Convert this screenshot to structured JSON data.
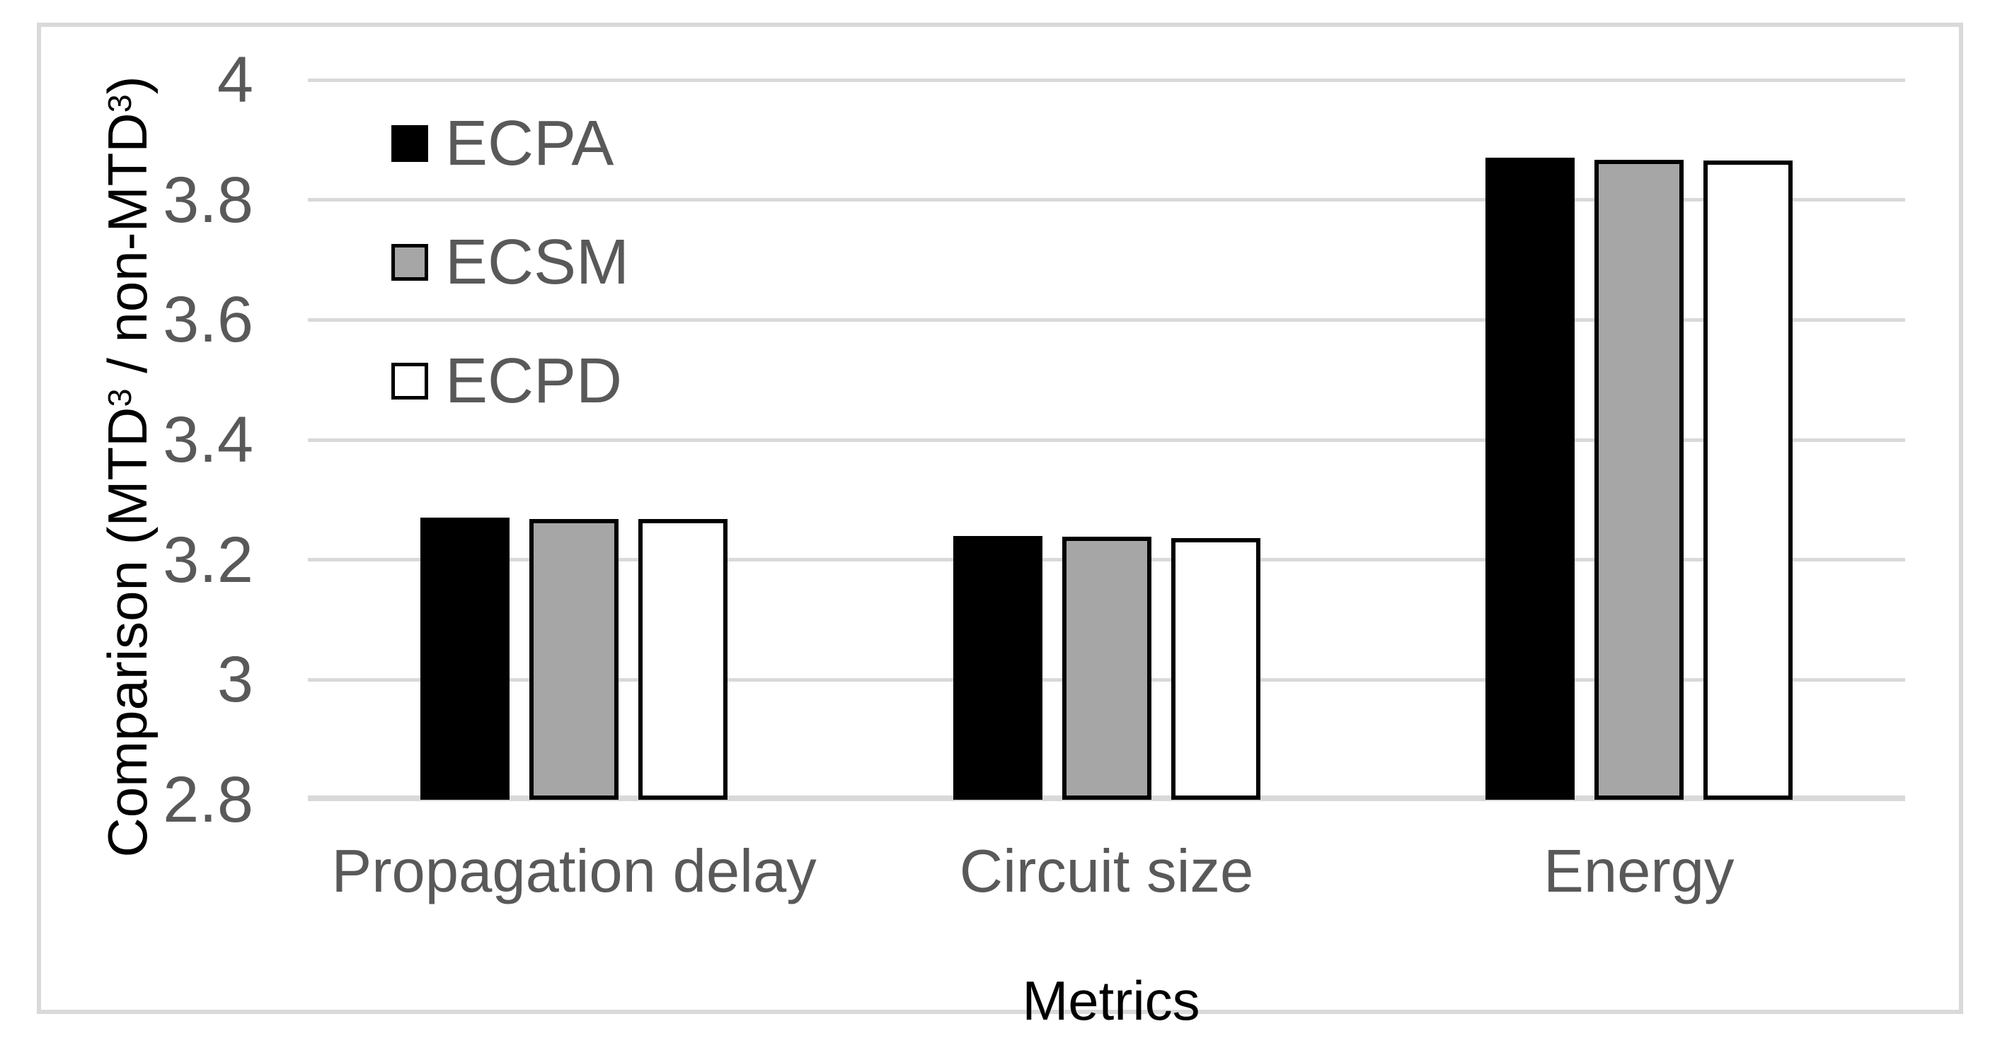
{
  "chart_data": {
    "type": "bar",
    "categories": [
      "Propagation delay",
      "Circuit size",
      "Energy"
    ],
    "series": [
      {
        "name": "ECPA",
        "fill": "#000000",
        "border": "#000000",
        "values": [
          3.27,
          3.24,
          3.87
        ]
      },
      {
        "name": "ECSM",
        "fill": "#a6a6a6",
        "border": "#000000",
        "values": [
          3.268,
          3.239,
          3.867
        ]
      },
      {
        "name": "ECPD",
        "fill": "#ffffff",
        "border": "#000000",
        "values": [
          3.268,
          3.236,
          3.866
        ]
      }
    ],
    "xlabel": "Metrics",
    "ylabel_parts": {
      "pre": "Comparison (MTD",
      "sup1": "3",
      "mid": " / non-MTD",
      "sup2": "3",
      "post": ")"
    },
    "ylim": [
      2.8,
      4.0
    ],
    "ytick_step": 0.2,
    "yticks": [
      "4",
      "3.8",
      "3.6",
      "3.4",
      "3.2",
      "3",
      "2.8"
    ],
    "grid": true,
    "legend_position": "top-left-inside"
  },
  "colors": {
    "gridline": "#d9d9d9",
    "frame_border": "#d9d9d9",
    "tick_text": "#595959",
    "category_text": "#595959",
    "legend_text": "#595959",
    "axis_title_text": "#000000",
    "bar_black": "#000000",
    "bar_gray": "#a6a6a6",
    "bar_white": "#ffffff",
    "background": "#ffffff"
  }
}
